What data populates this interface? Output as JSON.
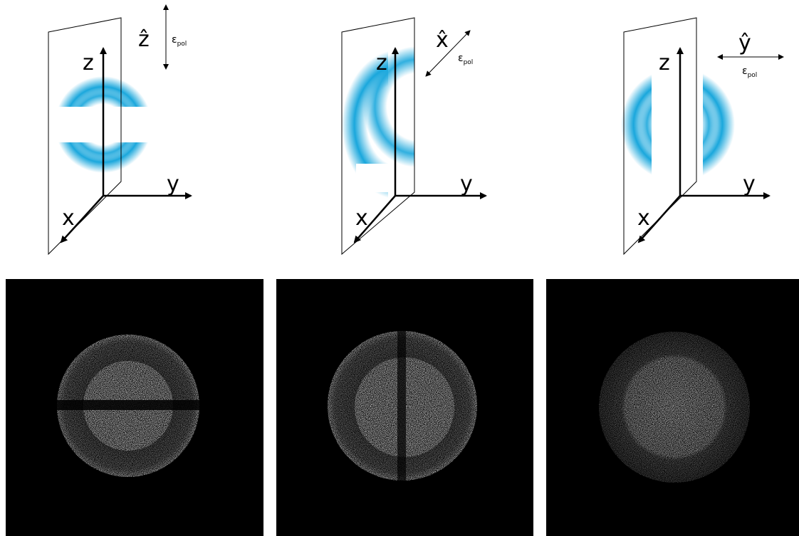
{
  "panels": [
    {
      "axes": {
        "z": "z",
        "y": "y",
        "x": "x"
      },
      "polarization": {
        "unit": "ẑ",
        "symbol": "ε",
        "subscript": "pol"
      }
    },
    {
      "axes": {
        "z": "z",
        "y": "y",
        "x": "x"
      },
      "polarization": {
        "unit": "x̂",
        "symbol": "ε",
        "subscript": "pol"
      }
    },
    {
      "axes": {
        "z": "z",
        "y": "y",
        "x": "x"
      },
      "polarization": {
        "unit": "ŷ",
        "symbol": "ε",
        "subscript": "pol"
      }
    }
  ]
}
